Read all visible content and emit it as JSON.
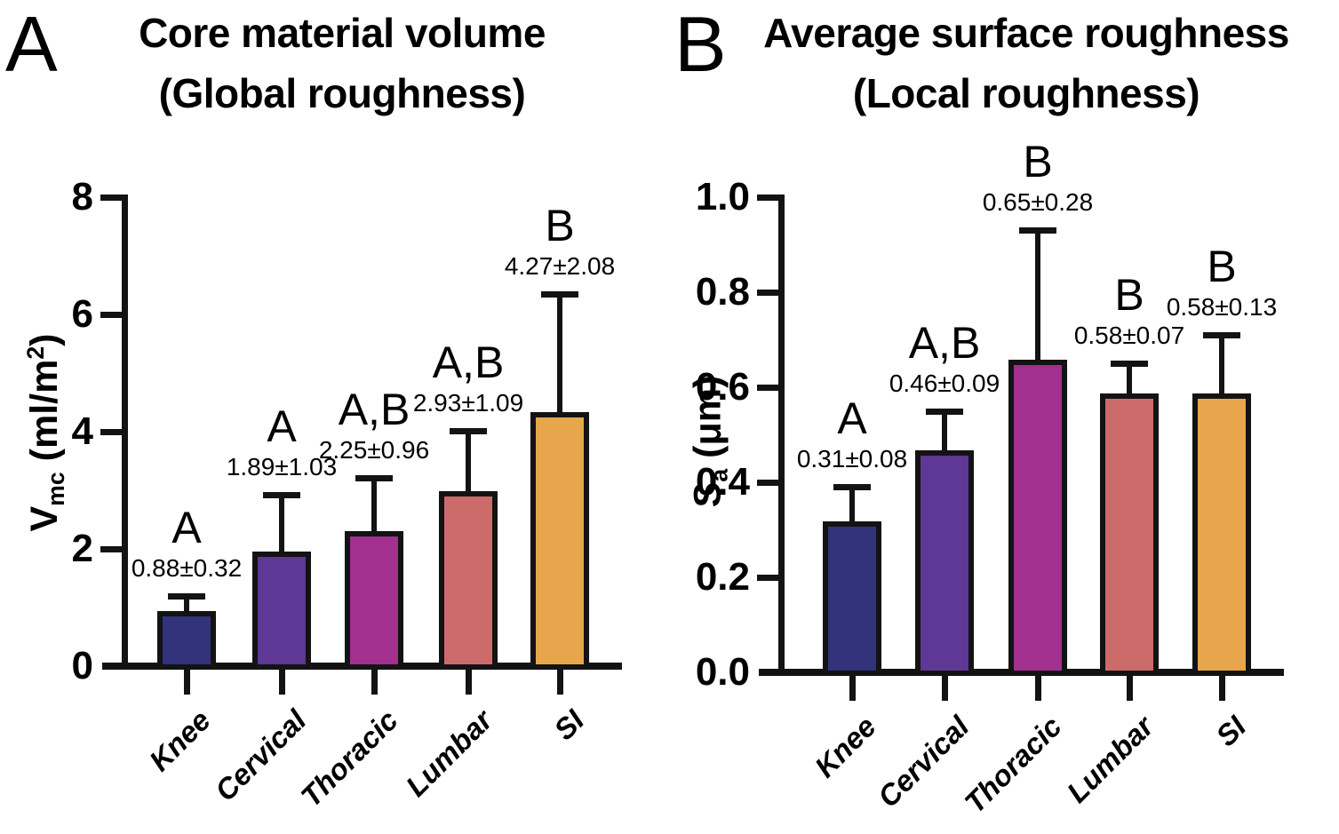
{
  "styles": {
    "background": "#ffffff",
    "axis_color": "#131313",
    "text_color": "#000000"
  },
  "chart_data": [
    {
      "type": "bar",
      "panel_letter": "A",
      "title": "Core material volume (Global roughness)",
      "title_line1": "Core material volume",
      "title_line2": "(Global roughness)",
      "ylabel": "Vmc (ml/m2)",
      "ylabel_parts": [
        {
          "text": "V"
        },
        {
          "text": "mc",
          "style": "sub"
        },
        {
          "text": " (ml/m"
        },
        {
          "text": "2",
          "style": "sup"
        },
        {
          "text": ")"
        }
      ],
      "ylim": [
        0,
        8
      ],
      "yticks": [
        0,
        2,
        4,
        6,
        8
      ],
      "ytick_labels": [
        "0",
        "2",
        "4",
        "6",
        "8"
      ],
      "categories": [
        "Knee",
        "Cervical",
        "Thoracic",
        "Lumbar",
        "SI"
      ],
      "values": [
        0.88,
        1.89,
        2.25,
        2.93,
        4.27
      ],
      "errors_sd": [
        0.32,
        1.03,
        0.96,
        1.09,
        2.08
      ],
      "value_labels": [
        "0.88±0.32",
        "1.89±1.03",
        "2.25±0.96",
        "2.93±1.09",
        "4.27±2.08"
      ],
      "sig_letters": [
        "A",
        "A",
        "A,B",
        "A,B",
        "B"
      ],
      "bar_colors": [
        "#32337b",
        "#5f3795",
        "#a1308f",
        "#cc6c6a",
        "#e7a64b"
      ],
      "error_direction": "upper_only",
      "grid": false,
      "legend": false
    },
    {
      "type": "bar",
      "panel_letter": "B",
      "title": "Average surface roughness (Local roughness)",
      "title_line1": "Average surface roughness",
      "title_line2": "(Local roughness)",
      "ylabel": "Sa (μm)",
      "ylabel_parts": [
        {
          "text": "S"
        },
        {
          "text": "a",
          "style": "sub"
        },
        {
          "text": " (μm)"
        }
      ],
      "ylim": [
        0,
        1.0
      ],
      "yticks": [
        0,
        0.2,
        0.4,
        0.6,
        0.8,
        1.0
      ],
      "ytick_labels": [
        "0.0",
        "0.2",
        "0.4",
        "0.6",
        "0.8",
        "1.0"
      ],
      "categories": [
        "Knee",
        "Cervical",
        "Thoracic",
        "Lumbar",
        "SI"
      ],
      "values": [
        0.31,
        0.46,
        0.65,
        0.58,
        0.58
      ],
      "errors_sd": [
        0.08,
        0.09,
        0.28,
        0.07,
        0.13
      ],
      "value_labels": [
        "0.31±0.08",
        "0.46±0.09",
        "0.65±0.28",
        "0.58±0.07",
        "0.58±0.13"
      ],
      "sig_letters": [
        "A",
        "A,B",
        "B",
        "B",
        "B"
      ],
      "bar_colors": [
        "#32337b",
        "#5f3795",
        "#a1308f",
        "#cc6c6a",
        "#e7a64b"
      ],
      "error_direction": "upper_only",
      "grid": false,
      "legend": false
    }
  ]
}
